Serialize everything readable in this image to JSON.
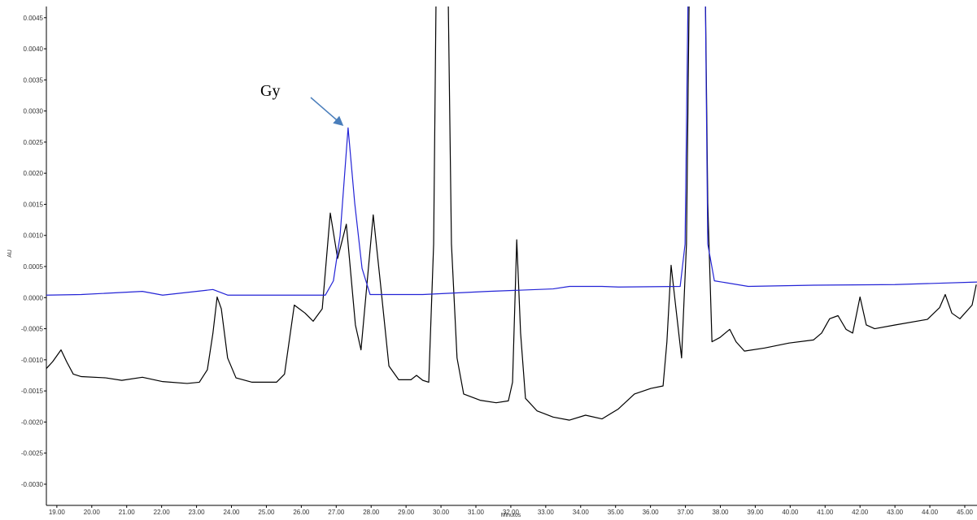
{
  "chart_data": {
    "type": "line",
    "xlabel": "Minutos",
    "ylabel": "AU",
    "annotation": "Gy",
    "xlim": [
      18.7,
      45.35
    ],
    "ylim": [
      -0.00334,
      0.00468
    ],
    "xticks": [
      {
        "value": 19,
        "label": "19.00"
      },
      {
        "value": 20,
        "label": "20.00"
      },
      {
        "value": 21,
        "label": "21.00"
      },
      {
        "value": 22,
        "label": "22.00"
      },
      {
        "value": 23,
        "label": "23.00"
      },
      {
        "value": 24,
        "label": "24.00"
      },
      {
        "value": 25,
        "label": "25.00"
      },
      {
        "value": 26,
        "label": "26.00"
      },
      {
        "value": 27,
        "label": "27.00"
      },
      {
        "value": 28,
        "label": "28.00"
      },
      {
        "value": 29,
        "label": "29.00"
      },
      {
        "value": 30,
        "label": "30.00"
      },
      {
        "value": 31,
        "label": "31.00"
      },
      {
        "value": 32,
        "label": "32.00"
      },
      {
        "value": 33,
        "label": "33.00"
      },
      {
        "value": 34,
        "label": "34.00"
      },
      {
        "value": 35,
        "label": "35.00"
      },
      {
        "value": 36,
        "label": "36.00"
      },
      {
        "value": 37,
        "label": "37.00"
      },
      {
        "value": 38,
        "label": "38.00"
      },
      {
        "value": 39,
        "label": "39.00"
      },
      {
        "value": 40,
        "label": "40.00"
      },
      {
        "value": 41,
        "label": "41.00"
      },
      {
        "value": 42,
        "label": "42.00"
      },
      {
        "value": 43,
        "label": "43.00"
      },
      {
        "value": 44,
        "label": "44.00"
      },
      {
        "value": 45,
        "label": "45.00"
      }
    ],
    "yticks": [
      0.0045,
      {
        "value": 0.004,
        "label": "0.0040"
      },
      0.0035,
      {
        "value": 0.003,
        "label": "0.0030"
      },
      0.0025,
      {
        "value": 0.002,
        "label": "0.0020"
      },
      0.0015,
      {
        "value": 0.001,
        "label": "0.0010"
      },
      0.0005,
      {
        "value": 0,
        "label": "0.0000"
      },
      -0.0005,
      {
        "value": -0.001,
        "label": "-0.0010"
      },
      -0.0015,
      {
        "value": -0.002,
        "label": "-0.0020"
      },
      -0.0025,
      {
        "value": -0.003,
        "label": "-0.0030"
      }
    ],
    "series": [
      {
        "color": "#000000",
        "x": [
          18.7,
          18.88,
          19.12,
          19.28,
          19.47,
          19.7,
          20.4,
          20.86,
          21.45,
          22.03,
          22.73,
          23.08,
          23.31,
          23.47,
          23.59,
          23.71,
          23.89,
          24.13,
          24.59,
          25.29,
          25.52,
          25.8,
          26.11,
          26.34,
          26.6,
          26.83,
          27.04,
          27.29,
          27.55,
          27.71,
          28.06,
          28.27,
          28.51,
          28.79,
          29.14,
          29.3,
          29.48,
          29.65,
          29.79,
          29.88,
          30.18,
          30.3,
          30.46,
          30.65,
          31.12,
          31.58,
          31.93,
          32.05,
          32.17,
          32.28,
          32.42,
          32.75,
          33.21,
          33.68,
          34.14,
          34.61,
          35.08,
          35.54,
          36.01,
          36.36,
          36.47,
          36.59,
          36.73,
          36.89,
          37.03,
          37.13,
          37.55,
          37.64,
          37.76,
          37.99,
          38.27,
          38.45,
          38.69,
          39.27,
          39.97,
          40.67,
          40.9,
          41.13,
          41.37,
          41.6,
          41.79,
          42.0,
          42.18,
          42.42,
          43.0,
          43.93,
          44.28,
          44.44,
          44.63,
          44.86,
          45.21,
          45.33
        ],
        "values": [
          -0.00114,
          -0.00103,
          -0.00084,
          -0.00103,
          -0.00123,
          -0.00127,
          -0.00129,
          -0.00133,
          -0.00128,
          -0.00135,
          -0.00138,
          -0.00136,
          -0.00116,
          -0.00057,
          1e-05,
          -0.00018,
          -0.00097,
          -0.00129,
          -0.00136,
          -0.00136,
          -0.00123,
          -0.00012,
          -0.00025,
          -0.00038,
          -0.00018,
          0.00136,
          0.00063,
          0.00118,
          -0.00044,
          -0.00084,
          0.00133,
          0.00021,
          -0.0011,
          -0.00132,
          -0.00132,
          -0.00125,
          -0.00133,
          -0.00136,
          0.00086,
          0.006,
          0.006,
          0.00086,
          -0.00097,
          -0.00155,
          -0.00165,
          -0.00169,
          -0.00166,
          -0.00136,
          0.00093,
          -0.00057,
          -0.00162,
          -0.00182,
          -0.00192,
          -0.00197,
          -0.00189,
          -0.00195,
          -0.00179,
          -0.00155,
          -0.00146,
          -0.00142,
          -0.00071,
          0.00052,
          -0.00018,
          -0.00097,
          0.00086,
          0.006,
          0.006,
          0.00152,
          -0.00071,
          -0.00064,
          -0.00051,
          -0.00071,
          -0.00086,
          -0.00081,
          -0.00073,
          -0.00068,
          -0.00057,
          -0.00034,
          -0.00029,
          -0.00051,
          -0.00057,
          1e-05,
          -0.00044,
          -0.0005,
          -0.00044,
          -0.00035,
          -0.00016,
          5e-05,
          -0.00025,
          -0.00034,
          -0.00012,
          0.00021
        ]
      },
      {
        "color": "#2323d6",
        "x": [
          18.7,
          19.7,
          21.45,
          22.03,
          23.47,
          23.89,
          26.69,
          26.92,
          27.11,
          27.34,
          27.53,
          27.74,
          27.97,
          29.48,
          31.35,
          33.21,
          33.68,
          34.61,
          35.08,
          36.85,
          36.99,
          37.1,
          37.55,
          37.64,
          37.83,
          38.8,
          40.67,
          43.0,
          45.35
        ],
        "values": [
          4e-05,
          5e-05,
          0.0001,
          4e-05,
          0.00013,
          4e-05,
          4e-05,
          0.00027,
          0.00099,
          0.00273,
          0.00152,
          0.00047,
          5e-05,
          5e-05,
          0.0001,
          0.00014,
          0.00018,
          0.00018,
          0.00017,
          0.00018,
          0.00086,
          0.006,
          0.006,
          0.00086,
          0.00027,
          0.00018,
          0.0002,
          0.00021,
          0.00025
        ]
      }
    ]
  }
}
